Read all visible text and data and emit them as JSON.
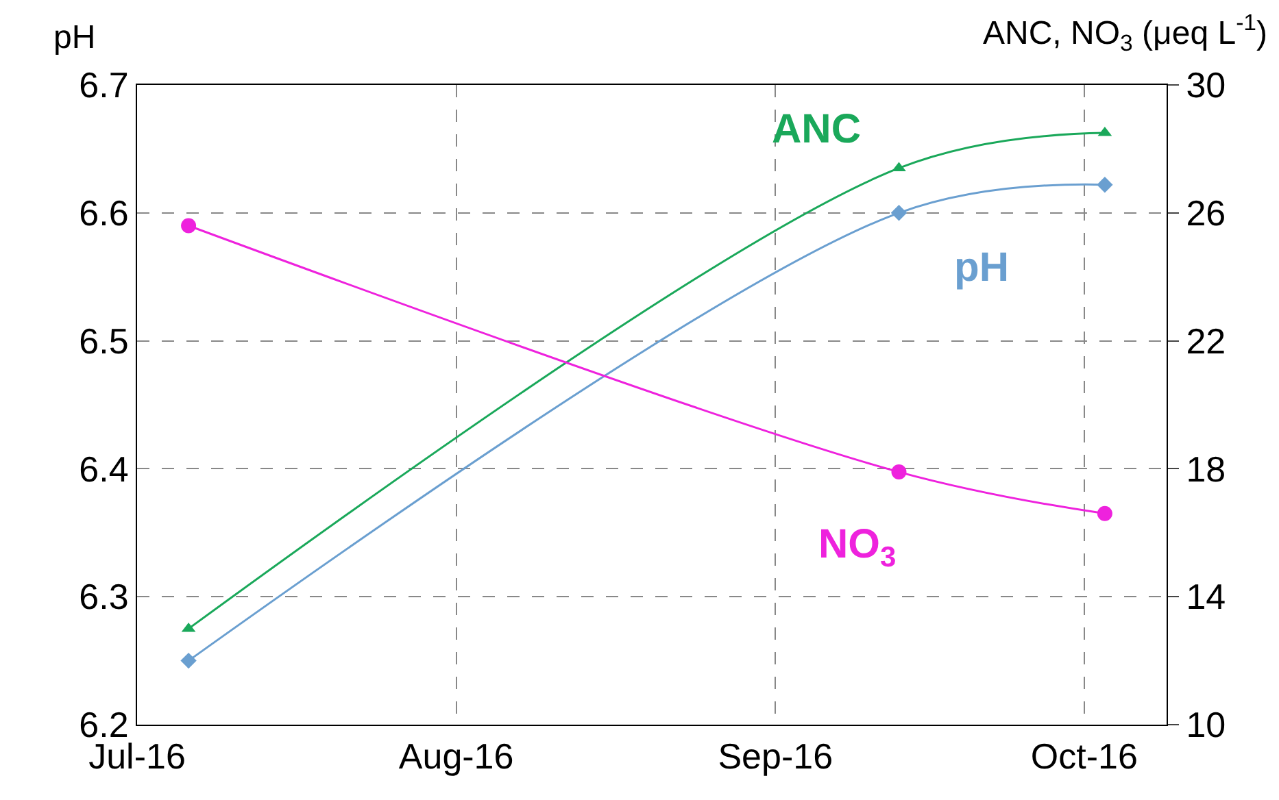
{
  "chart_data": {
    "type": "line",
    "ylabel": "pH",
    "y2label": "ANC, NO$_{3}$ (μeq L$^{-1}$)",
    "xlim": [
      "2016-07-01",
      "2016-10-09"
    ],
    "xticks": [
      {
        "value": "2016-07-01",
        "label": "Jul-16"
      },
      {
        "value": "2016-08-01",
        "label": "Aug-16"
      },
      {
        "value": "2016-09-01",
        "label": "Sep-16"
      },
      {
        "value": "2016-10-01",
        "label": "Oct-16"
      }
    ],
    "ylim": [
      6.2,
      6.7
    ],
    "yticks": [
      6.2,
      6.3,
      6.4,
      6.5,
      6.6,
      6.7
    ],
    "y2lim": [
      10,
      30
    ],
    "y2ticks": [
      10,
      14,
      18,
      22,
      26,
      30
    ],
    "grid": true,
    "legend": false,
    "series": [
      {
        "name": "ANC",
        "color": "#1aa85a",
        "axis": "y2",
        "marker": "triangle",
        "x": [
          "2016-07-06",
          "2016-09-13",
          "2016-10-03"
        ],
        "values": [
          13.0,
          27.4,
          28.5
        ]
      },
      {
        "name": "pH",
        "color": "#6a9fd0",
        "marker": "diamond",
        "x": [
          "2016-07-06",
          "2016-09-13",
          "2016-10-03"
        ],
        "values": [
          6.25,
          6.6,
          6.622
        ]
      },
      {
        "name": "NO$_{3}$",
        "color": "#ee22dd",
        "axis": "y2",
        "marker": "circle",
        "x": [
          "2016-07-06",
          "2016-09-13",
          "2016-10-03"
        ],
        "values": [
          25.6,
          17.9,
          16.6
        ]
      }
    ]
  }
}
